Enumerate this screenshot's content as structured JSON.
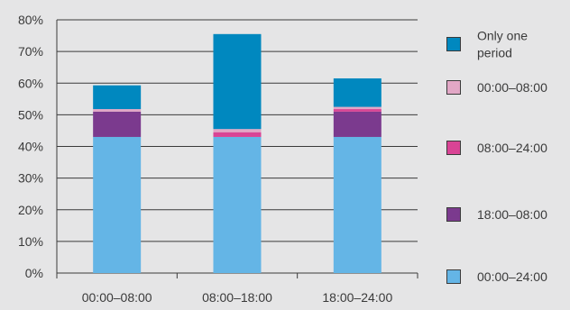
{
  "chart_data": {
    "type": "bar",
    "stacked": true,
    "categories": [
      "00:00–08:00",
      "08:00–18:00",
      "18:00–24:00"
    ],
    "y_ticks": [
      "0%",
      "10%",
      "20%",
      "30%",
      "40%",
      "50%",
      "60%",
      "70%",
      "80%"
    ],
    "ylim": [
      0,
      80
    ],
    "grid": true,
    "legend_position": "right",
    "series": [
      {
        "name": "00:00–24:00",
        "color": "#64b5e6",
        "values": [
          43,
          43,
          43
        ]
      },
      {
        "name": "18:00–08:00",
        "color": "#7b3a8e",
        "values": [
          8,
          0,
          8
        ]
      },
      {
        "name": "08:00–24:00",
        "color": "#d94495",
        "values": [
          0,
          1.5,
          0.8
        ]
      },
      {
        "name": "00:00–08:00",
        "color": "#e2a7c6",
        "values": [
          0.8,
          1,
          0.7
        ]
      },
      {
        "name": "Only one period",
        "color": "#0088bf",
        "values": [
          7.5,
          30,
          9
        ]
      }
    ],
    "legend_order": [
      {
        "lines": [
          "Only one",
          "period"
        ],
        "series": 4
      },
      {
        "lines": [
          "00:00–08:00"
        ],
        "series": 3
      },
      {
        "lines": [
          "08:00–24:00"
        ],
        "series": 2
      },
      {
        "lines": [
          "18:00–08:00"
        ],
        "series": 1
      },
      {
        "lines": [
          "00:00–24:00"
        ],
        "series": 0
      }
    ]
  }
}
